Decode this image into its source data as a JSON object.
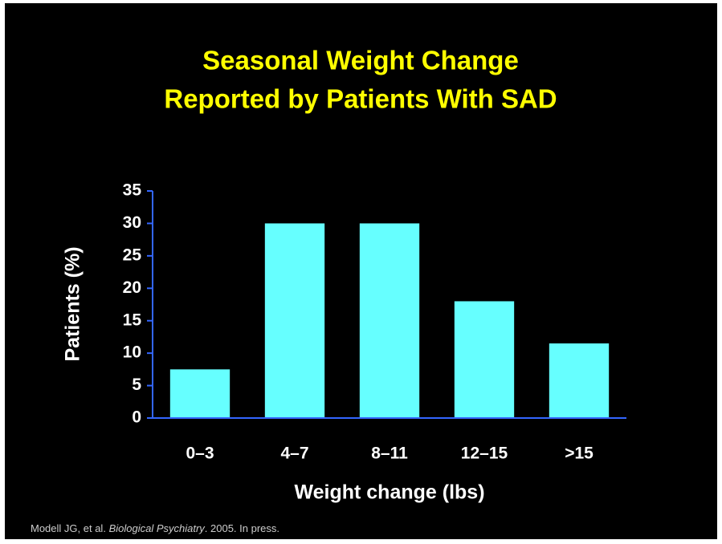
{
  "chart_data": {
    "type": "bar",
    "title": [
      "Seasonal Weight Change",
      "Reported by Patients With SAD"
    ],
    "categories": [
      "0–3",
      "4–7",
      "8–11",
      "12–15",
      ">15"
    ],
    "values": [
      7.5,
      30,
      30,
      18,
      11.5
    ],
    "color": "#66ffff",
    "axis_color": "#3366ff",
    "ylim": [
      0,
      35
    ],
    "yticks": [
      0,
      5,
      10,
      15,
      20,
      25,
      30,
      35
    ],
    "xlabel": "Weight change (lbs)",
    "ylabel": "Patients (%)",
    "grid": false,
    "source": {
      "authors": "Modell JG, et al.",
      "journal": "Biological Psychiatry",
      "details": ". 2005.  In press."
    }
  }
}
